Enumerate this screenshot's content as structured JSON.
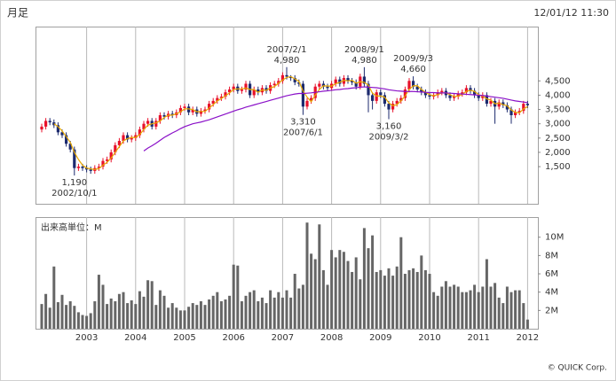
{
  "header": {
    "title": "月足",
    "timestamp": "12/01/12 11:30"
  },
  "footer": "© QUICK Corp.",
  "chart_data": [
    {
      "type": "candlestick",
      "up_color": "#e8102a",
      "down_color": "#1c2a6e",
      "open": [
        2800,
        2900,
        3100,
        3050,
        2950,
        2700,
        2600,
        2300,
        2100,
        1450,
        1500,
        1450,
        1400,
        1350,
        1450,
        1500,
        1700,
        1750,
        2000,
        2250,
        2400,
        2600,
        2450,
        2500,
        2600,
        2800,
        3000,
        3100,
        2900,
        3100,
        3300,
        3250,
        3350,
        3300,
        3400,
        3550,
        3600,
        3400,
        3500,
        3350,
        3450,
        3500,
        3700,
        3800,
        3900,
        3950,
        4100,
        4200,
        4300,
        4150,
        4200,
        4400,
        4000,
        4200,
        4100,
        4250,
        4150,
        4350,
        4400,
        4500,
        4700,
        4650,
        4600,
        4450,
        4400,
        3600,
        3800,
        3900,
        4300,
        4400,
        4300,
        4250,
        4400,
        4550,
        4400,
        4600,
        4500,
        4450,
        4300,
        4650,
        4400,
        4000,
        3800,
        4100,
        4000,
        3700,
        3500,
        3700,
        3800,
        3900,
        4200,
        4500,
        4300,
        4200,
        4100,
        4000,
        3950,
        4000,
        4100,
        4150,
        4000,
        3900,
        3950,
        4050,
        4100,
        4250,
        4150,
        4000,
        3900,
        4000,
        3700,
        3800,
        3600,
        3750,
        3650,
        3500,
        3300,
        3400,
        3450,
        3700
      ],
      "high": [
        3000,
        3200,
        3200,
        3150,
        3050,
        2800,
        2700,
        2400,
        2200,
        1600,
        1600,
        1550,
        1500,
        1550,
        1600,
        1800,
        1850,
        2100,
        2350,
        2500,
        2700,
        2700,
        2600,
        2700,
        2900,
        3100,
        3200,
        3200,
        3200,
        3400,
        3400,
        3450,
        3450,
        3500,
        3650,
        3700,
        3700,
        3600,
        3600,
        3550,
        3600,
        3800,
        3900,
        4000,
        4050,
        4200,
        4300,
        4400,
        4400,
        4300,
        4500,
        4500,
        4300,
        4300,
        4350,
        4350,
        4450,
        4500,
        4600,
        4800,
        4980,
        4700,
        4700,
        4550,
        4500,
        3900,
        4000,
        4400,
        4500,
        4500,
        4400,
        4500,
        4650,
        4650,
        4700,
        4700,
        4600,
        4550,
        4750,
        4980,
        4500,
        4100,
        4200,
        4200,
        4100,
        3800,
        3800,
        3900,
        4000,
        4300,
        4600,
        4660,
        4400,
        4300,
        4200,
        4100,
        4100,
        4200,
        4250,
        4250,
        4100,
        4050,
        4150,
        4200,
        4350,
        4350,
        4250,
        4100,
        4100,
        4100,
        3900,
        3900,
        3850,
        3850,
        3750,
        3600,
        3500,
        3550,
        3800,
        3800
      ],
      "low": [
        2700,
        2800,
        2950,
        2850,
        2600,
        2500,
        2200,
        2000,
        1190,
        1350,
        1350,
        1300,
        1250,
        1250,
        1350,
        1400,
        1600,
        1650,
        1900,
        2150,
        2300,
        2350,
        2350,
        2400,
        2500,
        2700,
        2900,
        2800,
        2800,
        3000,
        3150,
        3150,
        3200,
        3200,
        3300,
        3450,
        3300,
        3300,
        3250,
        3250,
        3350,
        3400,
        3600,
        3700,
        3800,
        3850,
        4000,
        4100,
        4050,
        4050,
        4100,
        3900,
        3900,
        4000,
        4000,
        4050,
        4050,
        4250,
        4300,
        4400,
        4550,
        4500,
        4350,
        4300,
        3310,
        3500,
        3700,
        3800,
        4200,
        4200,
        4150,
        4150,
        4300,
        4300,
        4300,
        4400,
        4350,
        4200,
        4200,
        4300,
        3400,
        3500,
        3700,
        3900,
        3600,
        3160,
        3400,
        3600,
        3700,
        3800,
        4100,
        4200,
        4100,
        4000,
        3900,
        3850,
        3850,
        3900,
        4000,
        3900,
        3800,
        3800,
        3850,
        3950,
        4000,
        4050,
        3900,
        3800,
        3800,
        3600,
        3600,
        3000,
        3500,
        3550,
        3400,
        3000,
        3200,
        3300,
        3350,
        3550
      ],
      "close": [
        2900,
        3100,
        3050,
        2950,
        2700,
        2600,
        2300,
        2100,
        1450,
        1500,
        1450,
        1400,
        1350,
        1450,
        1500,
        1700,
        1750,
        2000,
        2250,
        2400,
        2600,
        2450,
        2500,
        2600,
        2800,
        3000,
        3100,
        2900,
        3100,
        3300,
        3250,
        3350,
        3300,
        3400,
        3550,
        3600,
        3400,
        3500,
        3350,
        3450,
        3500,
        3700,
        3800,
        3900,
        3950,
        4100,
        4200,
        4300,
        4150,
        4200,
        4400,
        4000,
        4200,
        4100,
        4250,
        4150,
        4350,
        4400,
        4500,
        4700,
        4650,
        4600,
        4450,
        4400,
        3600,
        3800,
        3900,
        4300,
        4400,
        4300,
        4250,
        4400,
        4550,
        4400,
        4600,
        4500,
        4450,
        4300,
        4650,
        4400,
        4000,
        3800,
        4100,
        4000,
        3700,
        3500,
        3700,
        3800,
        3900,
        4200,
        4500,
        4300,
        4200,
        4100,
        4000,
        3950,
        4000,
        4100,
        4150,
        4000,
        3900,
        3950,
        4050,
        4100,
        4250,
        4150,
        4000,
        3900,
        4000,
        3700,
        3800,
        3600,
        3750,
        3650,
        3500,
        3300,
        3400,
        3450,
        3700,
        3650
      ],
      "lines": [
        {
          "color": "#e8a800",
          "values": [
            null,
            null,
            null,
            3000,
            2900,
            2750,
            2550,
            2350,
            2000,
            1750,
            1550,
            1450,
            1420,
            1400,
            1430,
            1550,
            1650,
            1800,
            2000,
            2200,
            2400,
            2480,
            2520,
            2520,
            2620,
            2800,
            2950,
            3000,
            3030,
            3100,
            3220,
            3300,
            3300,
            3350,
            3420,
            3520,
            3520,
            3500,
            3420,
            3430,
            3430,
            3550,
            3670,
            3800,
            3880,
            3980,
            4080,
            4200,
            4220,
            4220,
            4250,
            4200,
            4200,
            4100,
            4180,
            4170,
            4250,
            4300,
            4420,
            4530,
            4620,
            4650,
            4570,
            4480,
            4150,
            3930,
            3770,
            4000,
            4200,
            4330,
            4320,
            4320,
            4400,
            4450,
            4520,
            4500,
            4520,
            4420,
            4470,
            4450,
            4350,
            4070,
            3970,
            3970,
            3930,
            3730,
            3630,
            3670,
            3800,
            3970,
            4200,
            4330,
            4330,
            4200,
            4100,
            4020,
            3980,
            4020,
            4080,
            4080,
            4020,
            3950,
            3970,
            4030,
            4130,
            4170,
            4130,
            4020,
            3970,
            3870,
            3830,
            3700,
            3720,
            3670,
            3630,
            3480,
            3400,
            3380,
            3520,
            3600
          ]
        },
        {
          "color": "#8a10c8",
          "values": [
            null,
            null,
            null,
            null,
            null,
            null,
            null,
            null,
            null,
            null,
            null,
            null,
            null,
            null,
            null,
            null,
            null,
            null,
            null,
            null,
            null,
            null,
            null,
            null,
            null,
            2050,
            2150,
            2230,
            2320,
            2420,
            2520,
            2600,
            2680,
            2750,
            2830,
            2900,
            2950,
            3000,
            3030,
            3060,
            3100,
            3140,
            3190,
            3240,
            3290,
            3340,
            3390,
            3440,
            3490,
            3530,
            3580,
            3620,
            3660,
            3700,
            3740,
            3780,
            3820,
            3860,
            3900,
            3940,
            3980,
            4010,
            4040,
            4060,
            4060,
            4070,
            4080,
            4100,
            4120,
            4140,
            4150,
            4170,
            4190,
            4200,
            4220,
            4230,
            4250,
            4260,
            4280,
            4290,
            4280,
            4270,
            4260,
            4240,
            4220,
            4190,
            4170,
            4150,
            4140,
            4130,
            4130,
            4130,
            4120,
            4110,
            4100,
            4090,
            4090,
            4080,
            4080,
            4080,
            4070,
            4060,
            4050,
            4040,
            4030,
            4020,
            4010,
            4000,
            3990,
            3970,
            3950,
            3930,
            3910,
            3890,
            3860,
            3830,
            3800,
            3780,
            3760,
            3740
          ]
        }
      ],
      "annotations": [
        {
          "date": "2002/10/1",
          "value": 1190,
          "label": "1,190"
        },
        {
          "date": "2007/2/1",
          "value": 4980,
          "label": "4,980"
        },
        {
          "date": "2007/6/1",
          "value": 3310,
          "label": "3,310"
        },
        {
          "date": "2008/9/1",
          "value": 4980,
          "label": "4,980"
        },
        {
          "date": "2009/3/2",
          "value": 3160,
          "label": "3,160"
        },
        {
          "date": "2009/9/3",
          "value": 4660,
          "label": "4,660"
        }
      ],
      "ylim": [
        200,
        6400
      ],
      "yticks": [
        {
          "value": 1500,
          "label": "1,500"
        },
        {
          "value": 2000,
          "label": "2,000"
        },
        {
          "value": 2500,
          "label": "2,500"
        },
        {
          "value": 3000,
          "label": "3,000"
        },
        {
          "value": 3500,
          "label": "3,500"
        },
        {
          "value": 4000,
          "label": "4,000"
        },
        {
          "value": 4500,
          "label": "4,500"
        }
      ]
    },
    {
      "type": "bar",
      "title": "出来高単位：M",
      "color": "#666666",
      "categories": [
        null,
        null,
        null,
        null,
        null,
        null,
        null,
        null,
        null,
        null,
        null,
        "2003",
        null,
        null,
        null,
        null,
        null,
        null,
        null,
        null,
        null,
        null,
        null,
        "2004",
        null,
        null,
        null,
        null,
        null,
        null,
        null,
        null,
        null,
        null,
        null,
        "2005",
        null,
        null,
        null,
        null,
        null,
        null,
        null,
        null,
        null,
        null,
        null,
        "2006",
        null,
        null,
        null,
        null,
        null,
        null,
        null,
        null,
        null,
        null,
        null,
        "2007",
        null,
        null,
        null,
        null,
        null,
        null,
        null,
        null,
        null,
        null,
        null,
        "2008",
        null,
        null,
        null,
        null,
        null,
        null,
        null,
        null,
        null,
        null,
        null,
        "2009",
        null,
        null,
        null,
        null,
        null,
        null,
        null,
        null,
        null,
        null,
        null,
        "2010",
        null,
        null,
        null,
        null,
        null,
        null,
        null,
        null,
        null,
        null,
        null,
        "2011",
        null,
        null,
        null,
        null,
        null,
        null,
        null,
        null,
        null,
        null,
        null,
        "2012"
      ],
      "values": [
        2.7,
        3.8,
        2.3,
        6.8,
        2.9,
        3.7,
        2.6,
        3.0,
        2.5,
        1.8,
        1.5,
        1.4,
        1.7,
        3.0,
        5.9,
        4.8,
        2.7,
        3.3,
        3.0,
        3.8,
        4.0,
        2.8,
        3.1,
        2.7,
        4.1,
        3.5,
        5.3,
        5.2,
        2.6,
        4.2,
        3.6,
        2.3,
        2.8,
        2.3,
        2.0,
        2.0,
        2.4,
        2.8,
        2.6,
        3.0,
        2.6,
        3.2,
        3.6,
        4.0,
        3.0,
        3.2,
        3.6,
        7.0,
        6.9,
        3.0,
        3.6,
        4.0,
        4.2,
        3.0,
        3.4,
        2.8,
        4.2,
        3.4,
        4.0,
        3.4,
        4.2,
        3.4,
        6.0,
        4.4,
        4.8,
        11.6,
        8.2,
        7.6,
        11.4,
        6.4,
        4.8,
        8.6,
        7.8,
        8.6,
        8.4,
        7.4,
        6.2,
        7.8,
        5.4,
        11.0,
        8.8,
        10.2,
        6.2,
        6.4,
        5.8,
        6.6,
        5.8,
        6.8,
        10.0,
        6.0,
        6.4,
        6.6,
        6.2,
        8.0,
        6.4,
        6.0,
        4.0,
        3.6,
        4.6,
        5.2,
        4.6,
        4.8,
        4.6,
        4.0,
        4.0,
        4.2,
        4.8,
        4.0,
        4.6,
        7.6,
        4.6,
        5.0,
        3.4,
        2.8,
        4.6,
        4.0,
        4.2,
        4.2,
        2.8,
        1.0
      ],
      "ylim": [
        0,
        12.2
      ],
      "yticks": [
        {
          "value": 2,
          "label": "2M"
        },
        {
          "value": 4,
          "label": "4M"
        },
        {
          "value": 6,
          "label": "6M"
        },
        {
          "value": 8,
          "label": "8M"
        },
        {
          "value": 10,
          "label": "10M"
        }
      ]
    }
  ]
}
